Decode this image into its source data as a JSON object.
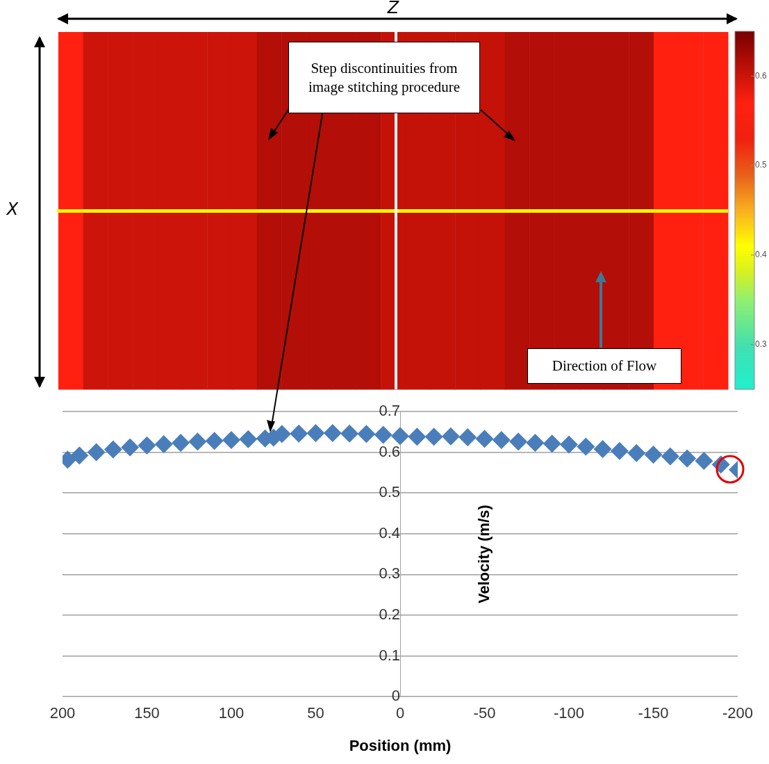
{
  "chart_data": [
    {
      "type": "heatmap",
      "xlabel": "Z",
      "ylabel": "X",
      "categories": [
        null,
        null,
        null,
        null,
        null,
        null,
        null,
        null,
        null,
        null,
        null,
        null,
        null,
        null,
        null,
        null,
        null,
        null,
        null,
        null,
        null,
        null,
        null,
        null,
        null,
        null,
        null
      ],
      "y_categories": [
        null
      ],
      "cells": [
        [
          0.57,
          0.6,
          0.6,
          0.6,
          0.6,
          0.6,
          0.6,
          0.6,
          0.615,
          0.615,
          0.615,
          0.615,
          0.615,
          0.605,
          0.605,
          0.605,
          0.605,
          0.605,
          0.615,
          0.615,
          0.615,
          0.615,
          0.615,
          0.615,
          0.57,
          0.57,
          0.57
        ]
      ],
      "clim": [
        0.25,
        0.65
      ],
      "cticks": [
        0.3,
        0.4,
        0.5,
        0.6
      ],
      "annotations": [
        "Step discontinuities from image stitching procedure",
        "Direction of Flow"
      ]
    },
    {
      "type": "scatter",
      "xlabel": "Position (mm)",
      "ylabel": "Velocity (m/s)",
      "color": "#4a7ebb",
      "marker": "diamond",
      "grid": "y",
      "xlim": [
        200,
        -200
      ],
      "xticks": [
        200,
        150,
        100,
        50,
        0,
        -50,
        -100,
        -150,
        -200
      ],
      "ylim": [
        0,
        0.7
      ],
      "yticks": [
        0,
        0.1,
        0.2,
        0.3,
        0.4,
        0.5,
        0.6,
        0.7
      ],
      "x": [
        197,
        190,
        180,
        170,
        160,
        150,
        140,
        130,
        120,
        110,
        100,
        90,
        80,
        75,
        70,
        60,
        50,
        40,
        30,
        20,
        10,
        0,
        -10,
        -20,
        -30,
        -40,
        -50,
        -60,
        -70,
        -80,
        -90,
        -100,
        -110,
        -120,
        -130,
        -140,
        -150,
        -160,
        -170,
        -180,
        -190,
        -200
      ],
      "values": [
        0.582,
        0.592,
        0.6,
        0.607,
        0.612,
        0.617,
        0.62,
        0.623,
        0.626,
        0.628,
        0.63,
        0.632,
        0.634,
        0.636,
        0.645,
        0.646,
        0.647,
        0.647,
        0.646,
        0.645,
        0.643,
        0.64,
        0.638,
        0.638,
        0.639,
        0.637,
        0.633,
        0.63,
        0.626,
        0.623,
        0.621,
        0.619,
        0.614,
        0.608,
        0.603,
        0.598,
        0.594,
        0.59,
        0.585,
        0.579,
        0.57,
        0.557
      ]
    }
  ]
}
